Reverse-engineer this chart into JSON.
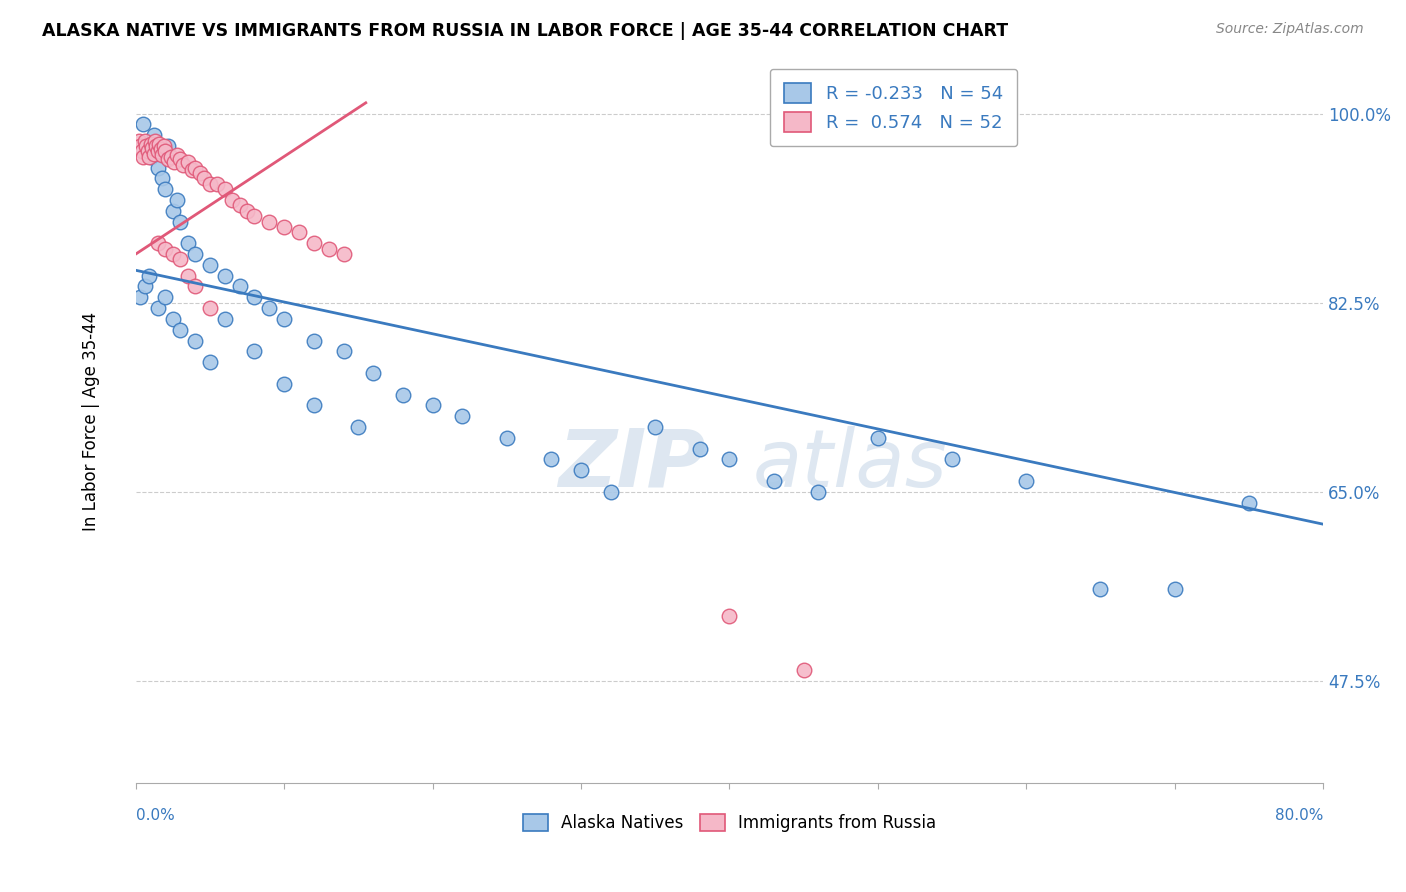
{
  "title": "ALASKA NATIVE VS IMMIGRANTS FROM RUSSIA IN LABOR FORCE | AGE 35-44 CORRELATION CHART",
  "source": "Source: ZipAtlas.com",
  "ylabel": "In Labor Force | Age 35-44",
  "legend_label_blue": "Alaska Natives",
  "legend_label_pink": "Immigrants from Russia",
  "R_blue": -0.233,
  "N_blue": 54,
  "R_pink": 0.574,
  "N_pink": 52,
  "color_blue": "#a8c8e8",
  "color_pink": "#f5b8c8",
  "line_color_blue": "#3a7abf",
  "line_color_pink": "#e05878",
  "ytick_labels": [
    "47.5%",
    "65.0%",
    "82.5%",
    "100.0%"
  ],
  "ytick_values": [
    0.475,
    0.65,
    0.825,
    1.0
  ],
  "xmin": 0.0,
  "xmax": 0.8,
  "ymin": 0.38,
  "ymax": 1.05,
  "watermark_zip": "ZIP",
  "watermark_atlas": "atlas",
  "blue_line_x0": 0.0,
  "blue_line_x1": 0.8,
  "blue_line_y0": 0.855,
  "blue_line_y1": 0.62,
  "pink_line_x0": 0.0,
  "pink_line_x1": 0.155,
  "pink_line_y0": 0.87,
  "pink_line_y1": 1.01,
  "blue_x": [
    0.005,
    0.008,
    0.01,
    0.012,
    0.015,
    0.018,
    0.02,
    0.022,
    0.025,
    0.028,
    0.03,
    0.035,
    0.04,
    0.05,
    0.06,
    0.07,
    0.08,
    0.09,
    0.1,
    0.12,
    0.14,
    0.16,
    0.18,
    0.2,
    0.22,
    0.25,
    0.28,
    0.3,
    0.32,
    0.35,
    0.38,
    0.4,
    0.43,
    0.46,
    0.5,
    0.55,
    0.6,
    0.65,
    0.7,
    0.75,
    0.003,
    0.006,
    0.009,
    0.015,
    0.02,
    0.025,
    0.03,
    0.04,
    0.05,
    0.06,
    0.08,
    0.1,
    0.12,
    0.15
  ],
  "blue_y": [
    0.99,
    0.97,
    0.96,
    0.98,
    0.95,
    0.94,
    0.93,
    0.97,
    0.91,
    0.92,
    0.9,
    0.88,
    0.87,
    0.86,
    0.85,
    0.84,
    0.83,
    0.82,
    0.81,
    0.79,
    0.78,
    0.76,
    0.74,
    0.73,
    0.72,
    0.7,
    0.68,
    0.67,
    0.65,
    0.71,
    0.69,
    0.68,
    0.66,
    0.65,
    0.7,
    0.68,
    0.66,
    0.56,
    0.56,
    0.64,
    0.83,
    0.84,
    0.85,
    0.82,
    0.83,
    0.81,
    0.8,
    0.79,
    0.77,
    0.81,
    0.78,
    0.75,
    0.73,
    0.71
  ],
  "pink_x": [
    0.002,
    0.003,
    0.004,
    0.005,
    0.006,
    0.007,
    0.008,
    0.009,
    0.01,
    0.011,
    0.012,
    0.013,
    0.014,
    0.015,
    0.016,
    0.017,
    0.018,
    0.019,
    0.02,
    0.022,
    0.024,
    0.026,
    0.028,
    0.03,
    0.032,
    0.035,
    0.038,
    0.04,
    0.043,
    0.046,
    0.05,
    0.055,
    0.06,
    0.065,
    0.07,
    0.075,
    0.08,
    0.09,
    0.1,
    0.11,
    0.12,
    0.13,
    0.14,
    0.015,
    0.02,
    0.025,
    0.03,
    0.035,
    0.04,
    0.05,
    0.4,
    0.45
  ],
  "pink_y": [
    0.975,
    0.97,
    0.965,
    0.96,
    0.975,
    0.97,
    0.965,
    0.96,
    0.972,
    0.968,
    0.963,
    0.975,
    0.97,
    0.965,
    0.972,
    0.967,
    0.962,
    0.97,
    0.965,
    0.958,
    0.96,
    0.955,
    0.962,
    0.958,
    0.952,
    0.955,
    0.948,
    0.95,
    0.945,
    0.94,
    0.935,
    0.935,
    0.93,
    0.92,
    0.915,
    0.91,
    0.905,
    0.9,
    0.895,
    0.89,
    0.88,
    0.875,
    0.87,
    0.88,
    0.875,
    0.87,
    0.865,
    0.85,
    0.84,
    0.82,
    0.535,
    0.485
  ]
}
